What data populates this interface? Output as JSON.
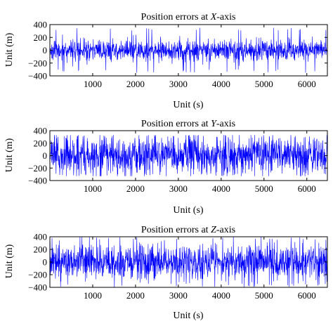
{
  "colors": {
    "series": "#0000ff",
    "axis": "#000000",
    "background": "#ffffff"
  },
  "chart_data": [
    {
      "type": "line",
      "title_prefix": "Position errors at ",
      "title_axis": "X",
      "title_suffix": "-axis",
      "xlabel": "Unit (s)",
      "ylabel": "Unit (m)",
      "xlim": [
        0,
        6480
      ],
      "ylim": [
        -400,
        400
      ],
      "xticks": [
        1000,
        2000,
        3000,
        4000,
        5000,
        6000
      ],
      "yticks": [
        400,
        200,
        0,
        -200,
        -400
      ],
      "grid": false,
      "noise": {
        "sigma": 80,
        "peak": 350,
        "seed": 11
      }
    },
    {
      "type": "line",
      "title_prefix": "Position errors at ",
      "title_axis": "Y",
      "title_suffix": "-axis",
      "xlabel": "Unit (s)",
      "ylabel": "Unit (m)",
      "xlim": [
        0,
        6480
      ],
      "ylim": [
        -400,
        400
      ],
      "xticks": [
        1000,
        2000,
        3000,
        4000,
        5000,
        6000
      ],
      "yticks": [
        400,
        200,
        0,
        -200,
        -400
      ],
      "grid": false,
      "noise": {
        "sigma": 150,
        "peak": 330,
        "seed": 23
      }
    },
    {
      "type": "line",
      "title_prefix": "Position errors at ",
      "title_axis": "Z",
      "title_suffix": "-axis",
      "xlabel": "Unit (s)",
      "ylabel": "Unit (m)",
      "xlim": [
        0,
        6480
      ],
      "ylim": [
        -400,
        400
      ],
      "xticks": [
        1000,
        2000,
        3000,
        4000,
        5000,
        6000
      ],
      "yticks": [
        400,
        200,
        0,
        -200,
        -400
      ],
      "grid": false,
      "noise": {
        "sigma": 130,
        "peak": 400,
        "seed": 37
      }
    }
  ]
}
